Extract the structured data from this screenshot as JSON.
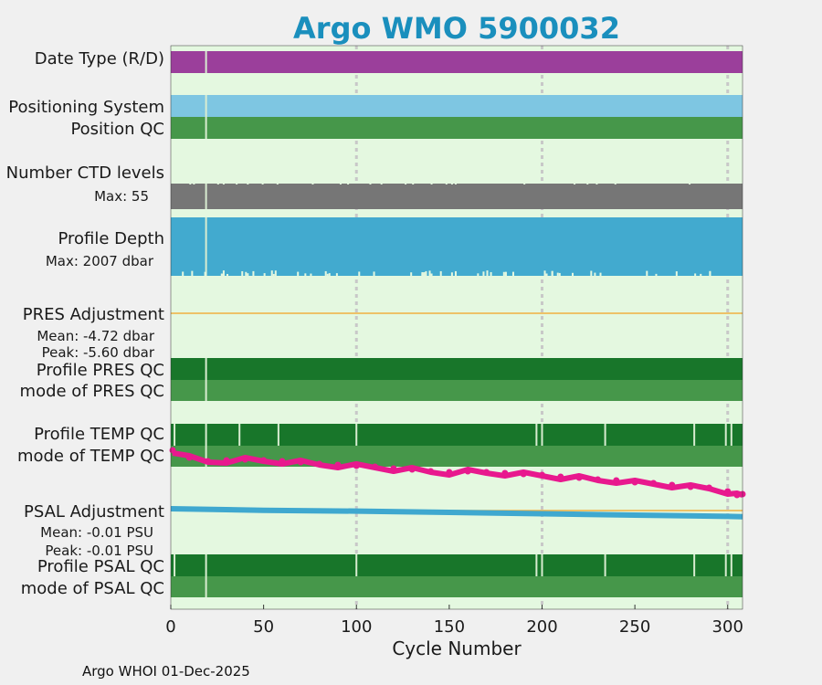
{
  "title": "Argo WMO 5900032",
  "footer": "Argo WHOI 01-Dec-2025",
  "colors": {
    "plot_bg": "#e4f8e0",
    "purple": "#9b3f9b",
    "light_blue": "#7ec6e2",
    "mid_green": "#46974a",
    "dark_green": "#18762a",
    "gray": "#767676",
    "depth_blue": "#42aacf",
    "magenta": "#e8198e",
    "orange": "#f0b040",
    "psal_blue": "#3fa8cf",
    "grid": "#c8c8c8",
    "gap": "#d8ecd0"
  },
  "chart_data": {
    "type": "timeline",
    "title": "Argo WMO 5900032",
    "xlabel": "Cycle Number",
    "xlim": [
      0,
      308
    ],
    "xticks": [
      0,
      50,
      100,
      150,
      200,
      250,
      300
    ],
    "gridlines": [
      100,
      200,
      300
    ],
    "rows": [
      {
        "label": "Date Type (R/D)",
        "color_key": "purple",
        "gaps": [
          19
        ]
      },
      {
        "label": "Positioning System",
        "color_key": "light_blue",
        "gaps": [
          19
        ]
      },
      {
        "label": "Position QC",
        "color_key": "mid_green",
        "gaps": [
          19
        ]
      },
      {
        "label": "Number CTD levels",
        "sub": "Max: 55",
        "color_key": "gray",
        "max": 55,
        "gaps": [
          19
        ]
      },
      {
        "label": "Profile Depth",
        "sub": "Max: 2007 dbar",
        "color_key": "depth_blue",
        "max": 2007,
        "gaps": [
          19
        ]
      },
      {
        "label": "PRES Adjustment",
        "mean": "Mean: -4.72 dbar",
        "peak": "Peak: -5.60 dbar"
      },
      {
        "label": "Profile PRES QC",
        "color_key": "dark_green",
        "gaps": [
          19
        ]
      },
      {
        "label": "mode of PRES QC",
        "color_key": "mid_green",
        "gaps": [
          19
        ]
      },
      {
        "label": "Profile TEMP QC",
        "color_key": "dark_green",
        "gaps": [
          2,
          19,
          37,
          58,
          100,
          197,
          200,
          234,
          282,
          299,
          302
        ]
      },
      {
        "label": "mode of TEMP QC",
        "color_key": "mid_green",
        "gaps": [
          19
        ]
      },
      {
        "label": "PSAL Adjustment",
        "mean": "Mean: -0.01 PSU",
        "peak": "Peak: -0.01 PSU"
      },
      {
        "label": "Profile PSAL QC",
        "color_key": "dark_green",
        "gaps": [
          2,
          19,
          100,
          197,
          200,
          234,
          282,
          299,
          302
        ]
      },
      {
        "label": "mode of PSAL QC",
        "color_key": "mid_green",
        "gaps": [
          19
        ]
      }
    ],
    "temp_trend": {
      "x": [
        1,
        10,
        20,
        30,
        40,
        50,
        60,
        70,
        80,
        90,
        100,
        110,
        120,
        130,
        140,
        150,
        160,
        170,
        180,
        190,
        200,
        210,
        220,
        230,
        240,
        250,
        260,
        270,
        280,
        290,
        300,
        305,
        308
      ],
      "y": [
        0.0,
        0.08,
        0.12,
        0.11,
        0.1,
        0.11,
        0.12,
        0.13,
        0.15,
        0.16,
        0.17,
        0.18,
        0.2,
        0.21,
        0.23,
        0.24,
        0.23,
        0.24,
        0.25,
        0.26,
        0.27,
        0.29,
        0.3,
        0.32,
        0.33,
        0.35,
        0.36,
        0.38,
        0.4,
        0.41,
        0.45,
        0.49,
        0.48
      ]
    },
    "psal_trend": {
      "x": [
        0,
        50,
        100,
        150,
        200,
        250,
        300,
        308
      ],
      "y": [
        0.0,
        0.08,
        0.12,
        0.18,
        0.25,
        0.32,
        0.38,
        0.4
      ]
    }
  }
}
